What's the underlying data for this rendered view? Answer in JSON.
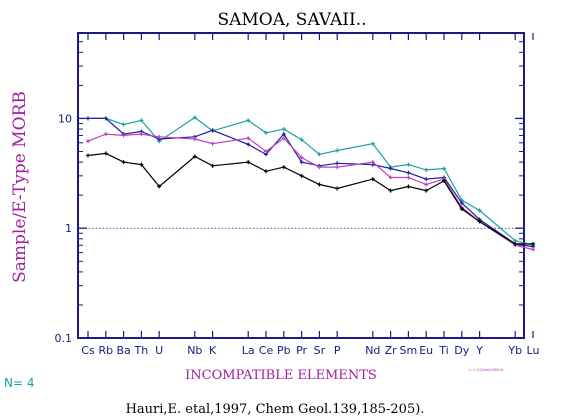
{
  "chart_data": {
    "type": "line",
    "title": "SAMOA, SAVAII..",
    "ylabel": "Sample/E-Type MORB",
    "xlabel": "INCOMPATIBLE ELEMENTS",
    "yscale": "log",
    "ylim": [
      0.1,
      60
    ],
    "yticks": [
      {
        "value": 10,
        "label": "10"
      },
      {
        "value": 1,
        "label": "1"
      },
      {
        "value": 0.1,
        "label": "0.1"
      }
    ],
    "reference_line": 1,
    "categories": [
      "Cs",
      "Rb",
      "Ba",
      "Th",
      "U",
      "Nb",
      "K",
      "La",
      "Ce",
      "Pb",
      "Pr",
      "Sr",
      "P",
      "Nd",
      "Zr",
      "Sm",
      "Eu",
      "Ti",
      "Dy",
      "Y",
      "Yb",
      "Lu"
    ],
    "category_slots": [
      0,
      1,
      2,
      3,
      4,
      6,
      7,
      9,
      10,
      11,
      12,
      13,
      14,
      16,
      17,
      18,
      19,
      20,
      21,
      22,
      24,
      25
    ],
    "slot_count": 26,
    "series": [
      {
        "color": "#20a0a0",
        "values": [
          10.0,
          10.0,
          8.8,
          9.6,
          6.2,
          10.2,
          7.7,
          9.6,
          7.4,
          8.0,
          6.4,
          4.7,
          5.1,
          5.9,
          3.6,
          3.8,
          3.4,
          3.5,
          1.8,
          1.45,
          0.77,
          0.7
        ]
      },
      {
        "color": "#2020a0",
        "values": [
          10.0,
          10.0,
          7.2,
          7.6,
          6.5,
          6.8,
          7.8,
          5.8,
          4.7,
          7.2,
          4.0,
          3.7,
          3.9,
          3.8,
          3.5,
          3.2,
          2.8,
          2.9,
          1.7,
          1.2,
          0.72,
          0.68
        ]
      },
      {
        "color": "#c040c0",
        "values": [
          6.2,
          7.2,
          7.0,
          7.2,
          6.8,
          6.5,
          5.9,
          6.6,
          5.0,
          6.6,
          4.4,
          3.6,
          3.6,
          4.0,
          2.9,
          2.9,
          2.5,
          2.8,
          1.55,
          1.15,
          0.7,
          0.64
        ]
      },
      {
        "color": "#000000",
        "values": [
          4.6,
          4.8,
          4.0,
          3.8,
          2.4,
          4.5,
          3.7,
          4.0,
          3.3,
          3.6,
          3.0,
          2.5,
          2.3,
          2.8,
          2.2,
          2.4,
          2.2,
          2.7,
          1.5,
          1.15,
          0.72,
          0.72
        ]
      }
    ]
  },
  "n_label": "N=  4",
  "source_note": "<- C:\\GData\\SAMOA-",
  "citation": "Hauri,E. etal,1997, Chem Geol.139,185-205)."
}
